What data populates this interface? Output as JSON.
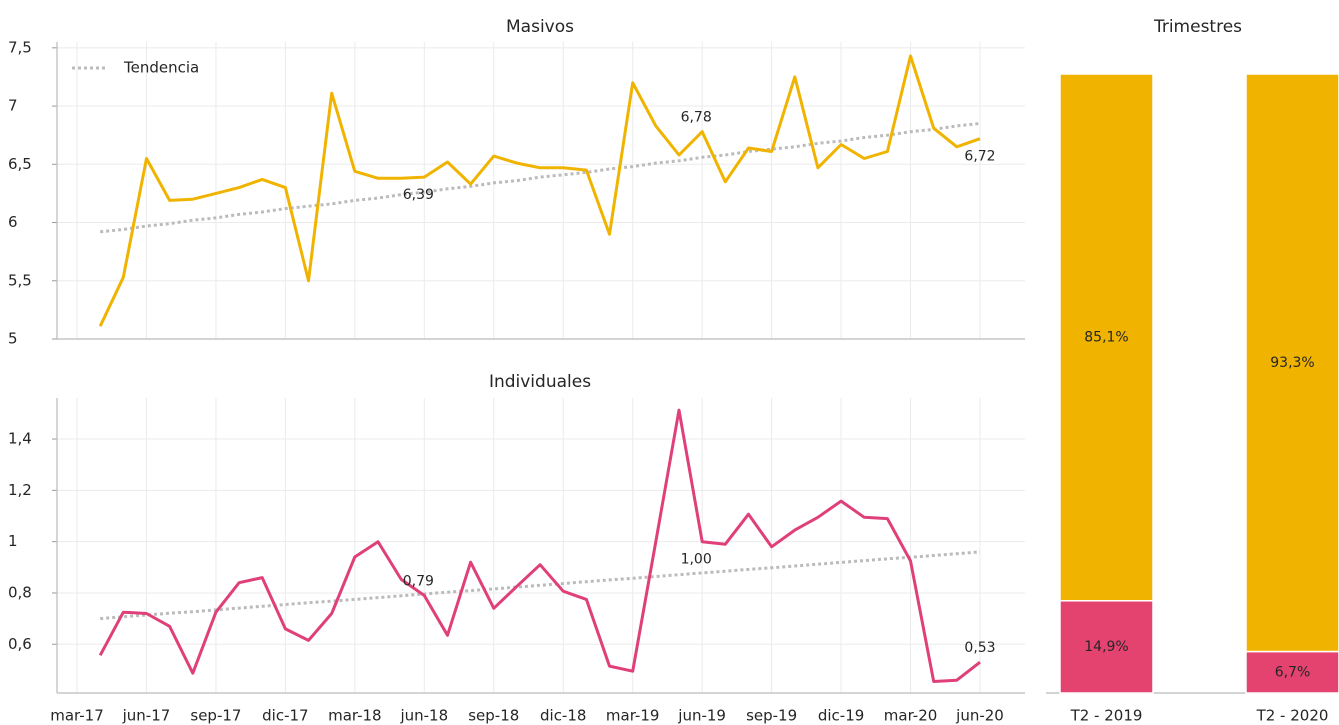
{
  "chart_data": [
    {
      "type": "line",
      "title": "Masivos",
      "ylim": [
        5,
        7.55
      ],
      "yticks": [
        5,
        {
          "value": 5.5,
          "label": "5,5"
        },
        6,
        {
          "value": 6.5,
          "label": "6,5"
        },
        7,
        {
          "value": 7.5,
          "label": "7,5"
        }
      ],
      "grid": true,
      "legend": "upper left",
      "series": [
        {
          "color": "#F0B400",
          "values": [
            null,
            5.11,
            5.53,
            6.55,
            6.19,
            6.2,
            6.25,
            6.3,
            6.37,
            6.3,
            5.5,
            7.11,
            6.44,
            6.38,
            6.38,
            6.39,
            6.52,
            6.33,
            6.57,
            6.51,
            6.47,
            6.47,
            6.45,
            5.9,
            7.2,
            6.83,
            6.58,
            6.78,
            6.35,
            6.64,
            6.61,
            7.25,
            6.47,
            6.67,
            6.55,
            6.61,
            7.43,
            6.81,
            6.65,
            6.72
          ],
          "value_labels": [
            null,
            null,
            null,
            null,
            null,
            null,
            null,
            null,
            null,
            null,
            null,
            null,
            null,
            null,
            null,
            "6,39",
            null,
            null,
            null,
            null,
            null,
            null,
            null,
            null,
            null,
            null,
            null,
            "6,78",
            null,
            null,
            null,
            null,
            null,
            null,
            null,
            null,
            null,
            null,
            null,
            "6,72"
          ]
        },
        {
          "name": "Tendencia",
          "color": "#BBBBBB",
          "style": "dotted",
          "values": [
            null,
            5.92,
            5.94,
            5.97,
            5.99,
            6.02,
            6.04,
            6.07,
            6.09,
            6.12,
            6.14,
            6.16,
            6.19,
            6.21,
            6.24,
            6.26,
            6.29,
            6.31,
            6.34,
            6.36,
            6.39,
            6.41,
            6.43,
            6.46,
            6.48,
            6.51,
            6.53,
            6.56,
            6.58,
            6.61,
            6.63,
            6.65,
            6.68,
            6.7,
            6.73,
            6.75,
            6.78,
            6.8,
            6.83,
            6.85
          ]
        }
      ]
    },
    {
      "type": "line",
      "title": "Individuales",
      "categories": [
        "mar-17",
        null,
        null,
        "jun-17",
        null,
        null,
        "sep-17",
        null,
        null,
        "dic-17",
        null,
        null,
        "mar-18",
        null,
        null,
        "jun-18",
        null,
        null,
        "sep-18",
        null,
        null,
        "dic-18",
        null,
        null,
        "mar-19",
        null,
        null,
        "jun-19",
        null,
        null,
        "sep-19",
        null,
        null,
        "dic-19",
        null,
        null,
        "mar-20",
        null,
        null,
        "jun-20"
      ],
      "ylim": [
        0.41,
        1.56
      ],
      "yticks": [
        {
          "value": 0.6,
          "label": "0,6"
        },
        {
          "value": 0.8,
          "label": "0,8"
        },
        1,
        {
          "value": 1.2,
          "label": "1,2"
        },
        {
          "value": 1.4,
          "label": "1,4"
        }
      ],
      "grid": true,
      "series": [
        {
          "color": "#E0407A",
          "values": [
            null,
            0.557,
            0.725,
            0.72,
            0.67,
            0.487,
            0.725,
            0.84,
            0.86,
            0.66,
            0.615,
            0.72,
            0.94,
            1.0,
            0.853,
            0.79,
            0.635,
            0.92,
            0.74,
            0.826,
            0.91,
            0.807,
            0.775,
            0.515,
            0.495,
            1.0,
            1.513,
            1.0,
            0.99,
            1.107,
            0.98,
            1.045,
            1.095,
            1.158,
            1.095,
            1.09,
            0.925,
            0.455,
            0.46,
            0.53
          ],
          "value_labels": [
            null,
            null,
            null,
            null,
            null,
            null,
            null,
            null,
            null,
            null,
            null,
            null,
            null,
            null,
            null,
            "0,79",
            null,
            null,
            null,
            null,
            null,
            null,
            null,
            null,
            null,
            null,
            null,
            "1,00",
            null,
            null,
            null,
            null,
            null,
            null,
            null,
            null,
            null,
            null,
            null,
            "0,53"
          ]
        },
        {
          "color": "#BBBBBB",
          "style": "dotted",
          "values": [
            null,
            0.7,
            0.707,
            0.714,
            0.721,
            0.727,
            0.734,
            0.741,
            0.748,
            0.755,
            0.762,
            0.768,
            0.775,
            0.782,
            0.789,
            0.796,
            0.803,
            0.809,
            0.816,
            0.823,
            0.83,
            0.837,
            0.844,
            0.851,
            0.857,
            0.864,
            0.871,
            0.878,
            0.885,
            0.892,
            0.898,
            0.905,
            0.912,
            0.919,
            0.926,
            0.933,
            0.939,
            0.946,
            0.953,
            0.96
          ]
        }
      ]
    },
    {
      "type": "stacked_bar",
      "title": "Trimestres",
      "categories": [
        "T2 - 2019",
        "T2 - 2020"
      ],
      "ylim": [
        0,
        100
      ],
      "series": [
        {
          "color": "#E5436F",
          "values": [
            14.9,
            6.7
          ],
          "value_labels": [
            "14,9%",
            "6,7%"
          ]
        },
        {
          "color": "#F0B400",
          "values": [
            85.1,
            93.3
          ],
          "value_labels": [
            "85,1%",
            "93,3%"
          ]
        }
      ]
    }
  ]
}
